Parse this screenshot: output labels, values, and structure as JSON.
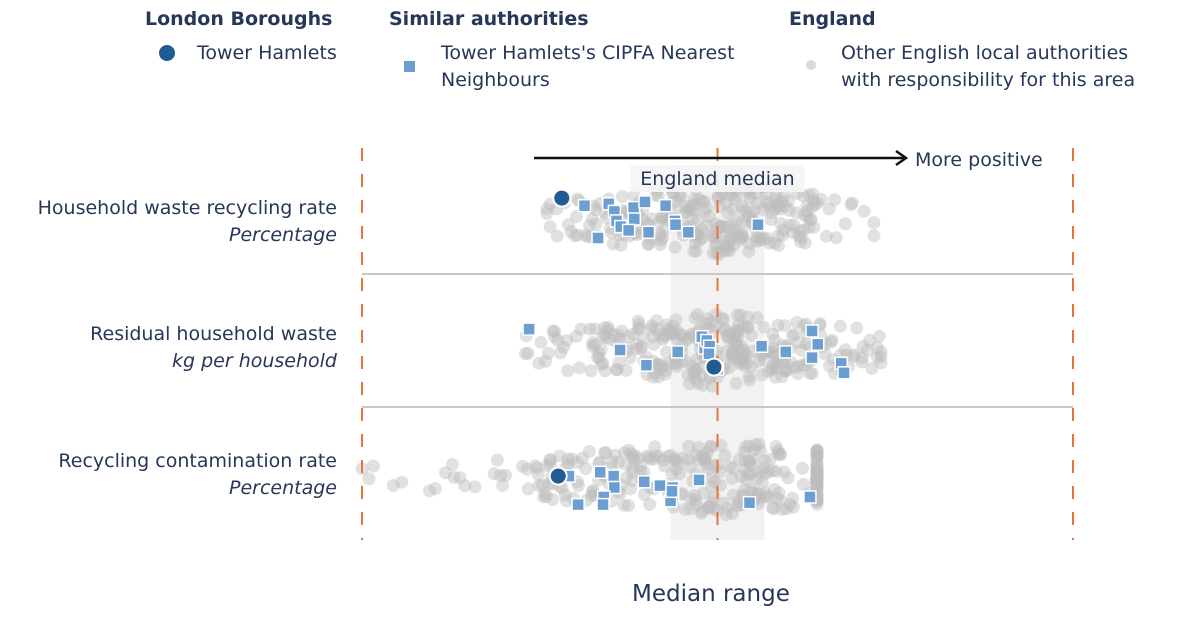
{
  "legend": {
    "groups": [
      {
        "heading": "London Boroughs",
        "label": "Tower Hamlets",
        "marker": "circle",
        "color": "#1f5c94"
      },
      {
        "heading": "Similar authorities",
        "label_line1": "Tower Hamlets's CIPFA Nearest",
        "label_line2": "Neighbours",
        "marker": "square",
        "color": "#6b9fd1"
      },
      {
        "heading": "England",
        "label_line1": "Other English local authorities",
        "label_line2": "with responsibility for this area",
        "marker": "circle-small",
        "color": "#d9d9d9"
      }
    ]
  },
  "chart_data": {
    "type": "scatter",
    "subtype": "beeswarm-strip",
    "x_scale": "relative position, 0 = left limit, 0.5 = England median, 1 = right limit",
    "direction_annotation": "More positive",
    "median_label": "England median",
    "median_position": 0.5,
    "median_range": [
      0.434,
      0.566
    ],
    "xlabel": "Median range",
    "colors": {
      "tower_hamlets": "#1f5c94",
      "neighbours": "#6b9fd1",
      "others": "#bdbdbd",
      "median_line": "#e8743b",
      "limit_line": "#e8743b",
      "median_band": "#f2f2f2",
      "row_divider": "#c8c8c8",
      "arrow": "#111111"
    },
    "rows": [
      {
        "title": "Household waste recycling rate",
        "unit": "Percentage",
        "tower_hamlets": {
          "x": 0.281,
          "y": -0.55
        },
        "neighbours": [
          {
            "x": 0.313,
            "y": -0.35
          },
          {
            "x": 0.347,
            "y": -0.4
          },
          {
            "x": 0.355,
            "y": -0.2
          },
          {
            "x": 0.382,
            "y": -0.3
          },
          {
            "x": 0.398,
            "y": -0.45
          },
          {
            "x": 0.427,
            "y": -0.35
          },
          {
            "x": 0.358,
            "y": 0.05
          },
          {
            "x": 0.383,
            "y": 0.0
          },
          {
            "x": 0.364,
            "y": 0.2
          },
          {
            "x": 0.375,
            "y": 0.3
          },
          {
            "x": 0.403,
            "y": 0.35
          },
          {
            "x": 0.44,
            "y": 0.05
          },
          {
            "x": 0.441,
            "y": 0.15
          },
          {
            "x": 0.459,
            "y": 0.35
          },
          {
            "x": 0.332,
            "y": 0.5
          },
          {
            "x": 0.557,
            "y": 0.15
          }
        ],
        "others": {
          "count": 260,
          "min": 0.26,
          "max": 0.72,
          "center": 0.5,
          "seed": 11
        }
      },
      {
        "title": "Residual household waste",
        "unit": "kg per household",
        "tower_hamlets": {
          "x": 0.495,
          "y": 0.45
        },
        "neighbours": [
          {
            "x": 0.235,
            "y": -0.55
          },
          {
            "x": 0.363,
            "y": 0.0
          },
          {
            "x": 0.4,
            "y": 0.4
          },
          {
            "x": 0.444,
            "y": 0.05
          },
          {
            "x": 0.482,
            "y": -0.05
          },
          {
            "x": 0.478,
            "y": -0.35
          },
          {
            "x": 0.485,
            "y": -0.25
          },
          {
            "x": 0.489,
            "y": -0.1
          },
          {
            "x": 0.488,
            "y": 0.1
          },
          {
            "x": 0.562,
            "y": -0.1
          },
          {
            "x": 0.596,
            "y": 0.05
          },
          {
            "x": 0.633,
            "y": 0.2
          },
          {
            "x": 0.633,
            "y": -0.5
          },
          {
            "x": 0.641,
            "y": -0.15
          },
          {
            "x": 0.674,
            "y": 0.35
          },
          {
            "x": 0.678,
            "y": 0.6
          },
          {
            "x": 0.5,
            "y": 0.5
          }
        ],
        "others": {
          "count": 300,
          "min": 0.23,
          "max": 0.73,
          "center": 0.5,
          "seed": 29
        }
      },
      {
        "title": "Recycling contamination rate",
        "unit": "Percentage",
        "tower_hamlets": {
          "x": 0.276,
          "y": -0.05
        },
        "neighbours": [
          {
            "x": 0.291,
            "y": -0.05
          },
          {
            "x": 0.335,
            "y": -0.15
          },
          {
            "x": 0.354,
            "y": -0.05
          },
          {
            "x": 0.355,
            "y": 0.25
          },
          {
            "x": 0.34,
            "y": 0.5
          },
          {
            "x": 0.304,
            "y": 0.7
          },
          {
            "x": 0.339,
            "y": 0.7
          },
          {
            "x": 0.397,
            "y": 0.1
          },
          {
            "x": 0.419,
            "y": 0.2
          },
          {
            "x": 0.437,
            "y": 0.25
          },
          {
            "x": 0.437,
            "y": 0.45
          },
          {
            "x": 0.434,
            "y": 0.6
          },
          {
            "x": 0.474,
            "y": 0.05
          },
          {
            "x": 0.545,
            "y": 0.65
          },
          {
            "x": 0.63,
            "y": 0.5
          },
          {
            "x": 0.436,
            "y": 0.35
          }
        ],
        "others": {
          "count": 280,
          "min": 0.0,
          "max": 0.64,
          "center": 0.5,
          "seed": 47
        }
      }
    ]
  }
}
